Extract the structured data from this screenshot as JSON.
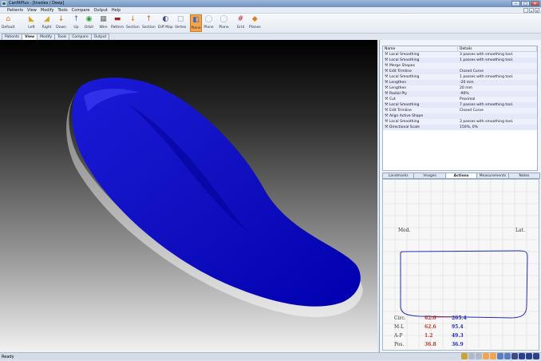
{
  "window": {
    "title": "CanfitPlus - [Insoles / Deep]"
  },
  "menu": {
    "items": [
      "Patients",
      "View",
      "Modify",
      "Tools",
      "Compare",
      "Output",
      "Help"
    ]
  },
  "toolbar": {
    "buttons": [
      {
        "label": "Default",
        "icon": "home-icon",
        "color": "#e07b1c"
      },
      {
        "label": "Left",
        "icon": "left-view-icon",
        "color": "#d6a51e"
      },
      {
        "label": "Right",
        "icon": "right-view-icon",
        "color": "#d6a51e"
      },
      {
        "label": "Down",
        "icon": "down-view-icon",
        "color": "#c06a1c"
      },
      {
        "label": "Up",
        "icon": "up-view-icon",
        "color": "#2f6fd0"
      },
      {
        "label": "Orbit",
        "icon": "orbit-icon",
        "color": "#2f9a3a"
      },
      {
        "label": "Wire",
        "icon": "wire-icon",
        "color": "#6b6b6b"
      },
      {
        "label": "Pattern",
        "icon": "pattern-icon",
        "color": "#9a2a1a"
      },
      {
        "label": "Section",
        "icon": "section-icon",
        "color": "#e07b1c"
      },
      {
        "label": "Section",
        "icon": "section2-icon",
        "color": "#c46a14"
      },
      {
        "label": "Diff Map",
        "icon": "diff-map-icon",
        "color": "#3a4a8a"
      },
      {
        "label": "Vertex",
        "icon": "vertex-icon",
        "color": "#8a9ab0"
      },
      {
        "label": "Plane",
        "icon": "plane-icon",
        "color": "#3a6ac0",
        "selected": true
      },
      {
        "label": "Plane",
        "icon": "plane2-icon",
        "color": "#a0b8d8"
      },
      {
        "label": "Plane",
        "icon": "plane3-icon",
        "color": "#a0b8d8"
      },
      {
        "label": "Grid",
        "icon": "grid-icon",
        "color": "#b02a2a"
      },
      {
        "label": "Planes",
        "icon": "planes-icon",
        "color": "#e07b1c"
      }
    ]
  },
  "tabs": [
    "Patients",
    "View",
    "Modify",
    "Tools",
    "Compare",
    "Output"
  ],
  "actions_table": {
    "headers": [
      "Name",
      "Details"
    ],
    "rows": [
      [
        "Local Smoothing",
        "3 passes with smoothing tool."
      ],
      [
        "Local Smoothing",
        "1 passes with smoothing tool."
      ],
      [
        "Merge Shapes",
        ""
      ],
      [
        "Edit Trimline",
        "Closed Curve"
      ],
      [
        "Local Smoothing",
        "1 passes with smoothing tool."
      ],
      [
        "Lengthen",
        "-20 mm"
      ],
      [
        "Lengthen",
        "20 mm"
      ],
      [
        "Radial Ply",
        "-90%"
      ],
      [
        "Cut",
        "Proximal"
      ],
      [
        "Local Smoothing",
        "7 passes with smoothing tool."
      ],
      [
        "Edit Trimline",
        "Closed Curve"
      ],
      [
        "Align Active Shape",
        ""
      ],
      [
        "Local Smoothing",
        "3 passes with smoothing tool."
      ],
      [
        "Directional Scale",
        "150%, 0%"
      ]
    ]
  },
  "panel_tabs": [
    "Landmarks",
    "Images",
    "Actions",
    "Measurements",
    "Notes"
  ],
  "active_panel_tab": "Actions",
  "graph": {
    "med_label": "Med.",
    "lat_label": "Lat.",
    "measurements": [
      {
        "label": "Circ.",
        "red": "62.6",
        "blue": "265.4"
      },
      {
        "label": "M-L",
        "red": "62.6",
        "blue": "95.4"
      },
      {
        "label": "A-P",
        "red": "1.2",
        "blue": "49.3"
      },
      {
        "label": "Pos.",
        "red": "36.8",
        "blue": "36.9"
      }
    ],
    "colors": {
      "red": "#c0392b",
      "blue": "#1f2fbf",
      "label": "#333333"
    }
  },
  "status": {
    "text": "Ready"
  },
  "colors": {
    "insole": "#1414c8",
    "accent": "#f4a54b"
  }
}
